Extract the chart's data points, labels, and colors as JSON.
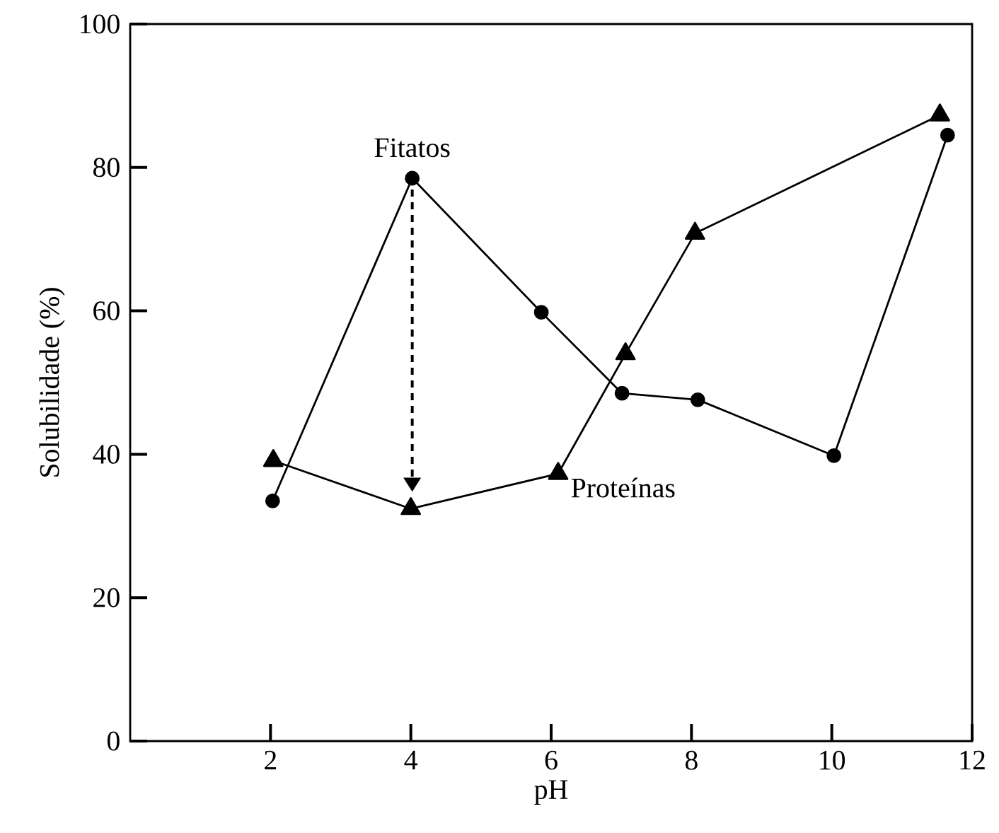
{
  "chart_data": {
    "type": "line",
    "xlabel": "pH",
    "ylabel": "Solubilidade (%)",
    "xlim": [
      0,
      12
    ],
    "ylim": [
      0,
      100
    ],
    "xticks": [
      2,
      4,
      6,
      8,
      10,
      12
    ],
    "yticks": [
      0,
      20,
      40,
      60,
      80,
      100
    ],
    "grid": false,
    "series": [
      {
        "name": "Fitatos",
        "color": "#000000",
        "marker": "circle",
        "x": [
          2.03,
          4.02,
          5.86,
          7.01,
          8.09,
          10.03,
          11.65
        ],
        "values": [
          33.5,
          78.5,
          59.8,
          48.5,
          47.6,
          39.8,
          84.5
        ]
      },
      {
        "name": "Proteínas",
        "color": "#000000",
        "marker": "triangle",
        "x": [
          2.04,
          4.0,
          6.1,
          7.06,
          8.05,
          11.54
        ],
        "values": [
          39.1,
          32.4,
          37.3,
          54.0,
          70.8,
          87.3
        ]
      }
    ]
  }
}
